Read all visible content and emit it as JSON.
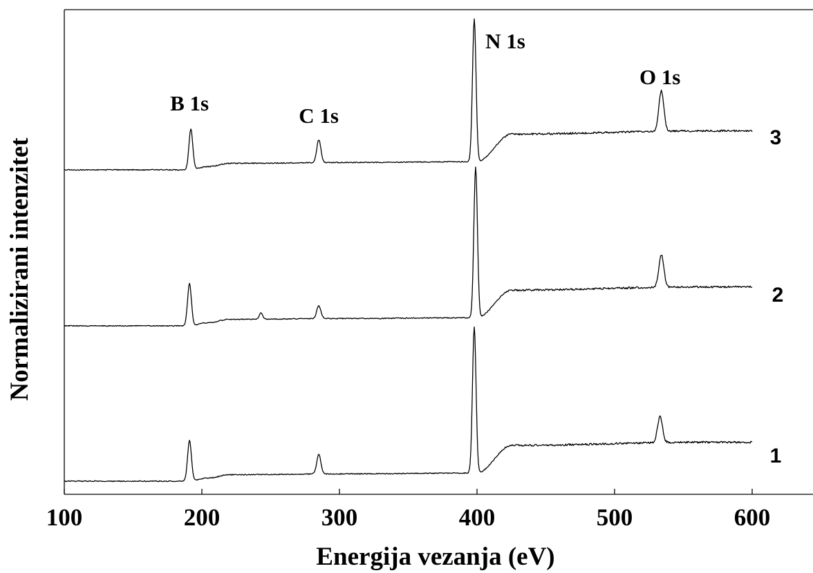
{
  "chart_data": {
    "type": "line",
    "title": "",
    "xlabel": "Energija vezanja (eV)",
    "ylabel": "Normalizirani intenzitet",
    "xlim": [
      100,
      650
    ],
    "xticks": [
      100,
      200,
      300,
      400,
      500,
      600
    ],
    "xtick_labels": [
      "100",
      "200",
      "300",
      "400",
      "500",
      "600"
    ],
    "y_ticks_shown": false,
    "grid": false,
    "legend": "none",
    "x_range_of_data": [
      100,
      600
    ],
    "baseline_model": {
      "segments_eV": [
        100,
        190,
        205,
        220,
        300,
        400,
        425,
        560,
        600
      ],
      "relative_level": [
        0.0,
        0.0,
        0.02,
        0.04,
        0.045,
        0.05,
        0.22,
        0.24,
        0.24
      ]
    },
    "series": [
      {
        "name": "1",
        "vertical_offset": 0.0,
        "peaks": [
          {
            "label": "B 1s",
            "x": 191,
            "height": 0.25,
            "width": 1.4
          },
          {
            "label": "C 1s",
            "x": 285,
            "height": 0.12,
            "width": 1.5
          },
          {
            "label": "N 1s",
            "x": 398,
            "height": 0.9,
            "width": 1.3
          },
          {
            "label": "O 1s",
            "x": 533,
            "height": 0.16,
            "width": 1.8
          }
        ]
      },
      {
        "name": "2",
        "vertical_offset": 1.0,
        "peaks": [
          {
            "label": "B 1s",
            "x": 191,
            "height": 0.26,
            "width": 1.4
          },
          {
            "label": "",
            "x": 243,
            "height": 0.04,
            "width": 1.2
          },
          {
            "label": "C 1s",
            "x": 285,
            "height": 0.08,
            "width": 1.5
          },
          {
            "label": "N 1s",
            "x": 399,
            "height": 0.93,
            "width": 1.3
          },
          {
            "label": "O 1s",
            "x": 534,
            "height": 0.2,
            "width": 1.8
          }
        ]
      },
      {
        "name": "3",
        "vertical_offset": 2.0,
        "peaks": [
          {
            "label": "B 1s",
            "x": 192,
            "height": 0.25,
            "width": 1.4
          },
          {
            "label": "C 1s",
            "x": 285,
            "height": 0.14,
            "width": 1.5
          },
          {
            "label": "N 1s",
            "x": 398,
            "height": 0.88,
            "width": 1.3
          },
          {
            "label": "O 1s",
            "x": 534,
            "height": 0.25,
            "width": 1.8
          }
        ]
      }
    ],
    "peak_annotations": [
      {
        "text": "B 1s",
        "x": 191
      },
      {
        "text": "C 1s",
        "x": 285
      },
      {
        "text": "N 1s",
        "x": 398
      },
      {
        "text": "O 1s",
        "x": 533
      }
    ]
  }
}
